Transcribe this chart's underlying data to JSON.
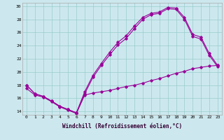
{
  "xlabel": "Windchill (Refroidissement éolien,°C)",
  "bg_color": "#cce8ee",
  "line_color": "#990099",
  "grid_color": "#99cccc",
  "xlim": [
    -0.5,
    23.5
  ],
  "ylim": [
    13.5,
    30.5
  ],
  "yticks": [
    14,
    16,
    18,
    20,
    22,
    24,
    26,
    28,
    30
  ],
  "xticks": [
    0,
    1,
    2,
    3,
    4,
    5,
    6,
    7,
    8,
    9,
    10,
    11,
    12,
    13,
    14,
    15,
    16,
    17,
    18,
    19,
    20,
    21,
    22,
    23
  ],
  "line1_x": [
    0,
    1,
    2,
    3,
    4,
    5,
    6,
    7,
    8,
    9,
    10,
    11,
    12,
    13,
    14,
    15,
    16,
    17,
    18,
    19,
    20,
    21,
    22,
    23
  ],
  "line1_y": [
    18.0,
    16.7,
    16.3,
    15.6,
    14.8,
    14.3,
    13.8,
    17.0,
    19.5,
    21.3,
    23.0,
    24.5,
    25.5,
    27.0,
    28.3,
    28.9,
    29.1,
    29.8,
    29.7,
    28.3,
    25.7,
    25.3,
    22.8,
    21.0
  ],
  "line2_x": [
    0,
    1,
    2,
    3,
    4,
    5,
    6,
    7,
    8,
    9,
    10,
    11,
    12,
    13,
    14,
    15,
    16,
    17,
    18,
    19,
    20,
    21,
    22,
    23
  ],
  "line2_y": [
    18.0,
    16.7,
    16.3,
    15.6,
    14.8,
    14.3,
    13.8,
    16.7,
    19.2,
    21.0,
    22.6,
    24.1,
    25.1,
    26.6,
    28.0,
    28.7,
    28.9,
    29.6,
    29.5,
    28.0,
    25.4,
    25.0,
    22.5,
    20.8
  ],
  "line3_x": [
    0,
    1,
    2,
    3,
    4,
    5,
    6,
    7,
    8,
    9,
    10,
    11,
    12,
    13,
    14,
    15,
    16,
    17,
    18,
    19,
    20,
    21,
    22,
    23
  ],
  "line3_y": [
    17.5,
    16.5,
    16.2,
    15.5,
    14.7,
    14.2,
    13.7,
    16.5,
    16.8,
    17.0,
    17.2,
    17.5,
    17.8,
    18.0,
    18.3,
    18.7,
    19.0,
    19.4,
    19.8,
    20.1,
    20.5,
    20.7,
    20.9,
    21.0
  ]
}
